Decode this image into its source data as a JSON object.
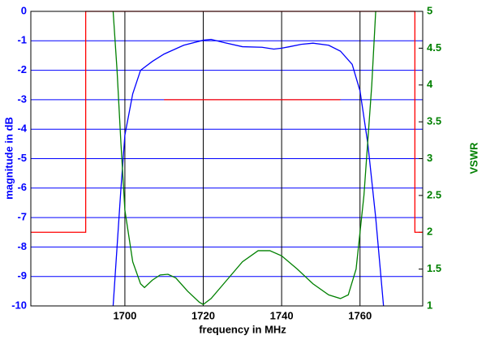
{
  "chart_data": {
    "type": "line",
    "xlabel": "frequency in MHz",
    "ylabel": "magnitude in dB",
    "y2label": "VSWR",
    "xlim": [
      1676,
      1776
    ],
    "xticks": [
      1700,
      1720,
      1740,
      1760
    ],
    "ylim": [
      -10,
      0
    ],
    "yticks": [
      0,
      -1,
      -2,
      -3,
      -4,
      -5,
      -6,
      -7,
      -8,
      -9,
      -10
    ],
    "y2lim": [
      1,
      5
    ],
    "y2ticks": [
      1,
      1.5,
      2,
      2.5,
      3,
      3.5,
      4,
      4.5,
      5
    ],
    "grid": true,
    "ygrid_color": "#0000ff",
    "xgrid_color": "#000000",
    "ylabel_color": "#0000ff",
    "y2label_color": "#008000",
    "series": [
      {
        "color": "#ff0000",
        "x": [
          1676,
          1690,
          1690,
          1774,
          1774,
          1776
        ],
        "values": [
          -7.5,
          -7.5,
          0,
          0,
          -7.5,
          -7.5
        ]
      },
      {
        "color": "#ff0000",
        "x": [
          1710,
          1755
        ],
        "values": [
          -3,
          -3
        ]
      },
      {
        "color": "#0000ff",
        "x": [
          1697,
          1699,
          1700,
          1702,
          1704,
          1707,
          1710,
          1715,
          1720,
          1722,
          1725,
          1730,
          1735,
          1738,
          1740,
          1742,
          1745,
          1748,
          1752,
          1755,
          1758,
          1760,
          1762,
          1764,
          1766
        ],
        "values": [
          -10,
          -6,
          -4.2,
          -2.8,
          -2,
          -1.7,
          -1.45,
          -1.15,
          -0.98,
          -0.95,
          -1.05,
          -1.2,
          -1.22,
          -1.28,
          -1.25,
          -1.2,
          -1.12,
          -1.08,
          -1.15,
          -1.35,
          -1.8,
          -2.7,
          -4.5,
          -7,
          -10
        ]
      },
      {
        "color": "#008000",
        "axis": "y2",
        "x": [
          1697,
          1698,
          1699,
          1700,
          1702,
          1704,
          1705,
          1707,
          1709,
          1711,
          1713,
          1716,
          1719,
          1720,
          1722,
          1726,
          1730,
          1734,
          1737,
          1740,
          1744,
          1748,
          1752,
          1755,
          1757,
          1759,
          1761,
          1763,
          1764
        ],
        "values": [
          5,
          4.2,
          3.2,
          2.3,
          1.6,
          1.3,
          1.25,
          1.35,
          1.42,
          1.43,
          1.38,
          1.2,
          1.05,
          1.02,
          1.1,
          1.35,
          1.6,
          1.75,
          1.75,
          1.68,
          1.5,
          1.3,
          1.15,
          1.1,
          1.15,
          1.5,
          2.5,
          4,
          5
        ]
      }
    ]
  }
}
